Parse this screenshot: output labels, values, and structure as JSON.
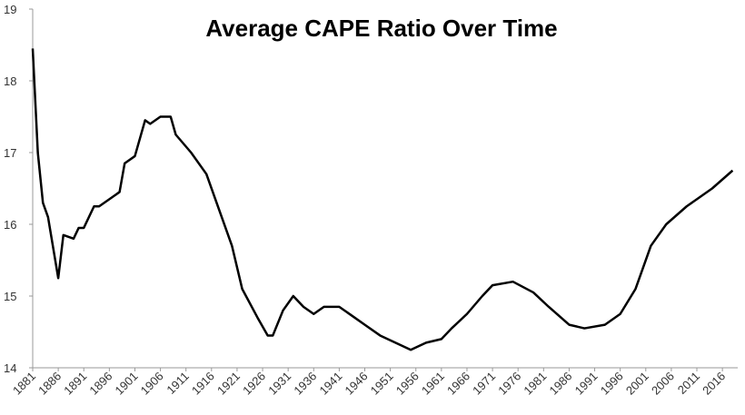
{
  "chart_data": {
    "type": "line",
    "title": "Average CAPE Ratio Over Time",
    "x": [
      1881,
      1882,
      1883,
      1884,
      1886,
      1887,
      1889,
      1890,
      1891,
      1893,
      1894,
      1896,
      1898,
      1899,
      1901,
      1903,
      1904,
      1906,
      1908,
      1909,
      1912,
      1915,
      1917,
      1920,
      1922,
      1925,
      1927,
      1928,
      1930,
      1932,
      1934,
      1936,
      1938,
      1941,
      1944,
      1946,
      1949,
      1952,
      1955,
      1958,
      1961,
      1963,
      1966,
      1969,
      1971,
      1975,
      1979,
      1982,
      1986,
      1989,
      1993,
      1996,
      1999,
      2002,
      2005,
      2009,
      2011,
      2014,
      2018
    ],
    "series": [
      {
        "name": "Average CAPE",
        "color": "#000000",
        "values": [
          18.45,
          17.0,
          16.3,
          16.1,
          15.25,
          15.85,
          15.8,
          15.95,
          15.95,
          16.25,
          16.25,
          16.35,
          16.45,
          16.85,
          16.95,
          17.45,
          17.4,
          17.5,
          17.5,
          17.25,
          17.0,
          16.7,
          16.3,
          15.7,
          15.1,
          14.7,
          14.45,
          14.45,
          14.8,
          15.0,
          14.85,
          14.75,
          14.85,
          14.85,
          14.7,
          14.6,
          14.45,
          14.35,
          14.25,
          14.35,
          14.4,
          14.55,
          14.75,
          15.0,
          15.15,
          15.2,
          15.05,
          14.85,
          14.6,
          14.55,
          14.6,
          14.75,
          15.1,
          15.7,
          16.0,
          16.25,
          16.35,
          16.5,
          16.75
        ]
      }
    ],
    "xlim": [
      1881,
      2019
    ],
    "xticks": [
      1881,
      1886,
      1891,
      1896,
      1901,
      1906,
      1911,
      1916,
      1921,
      1926,
      1931,
      1936,
      1941,
      1946,
      1951,
      1956,
      1961,
      1966,
      1971,
      1976,
      1981,
      1986,
      1991,
      1996,
      2001,
      2006,
      2011,
      2016
    ],
    "ylim": [
      14,
      19
    ],
    "yticks": [
      14,
      15,
      16,
      17,
      18,
      19
    ],
    "grid": false
  }
}
